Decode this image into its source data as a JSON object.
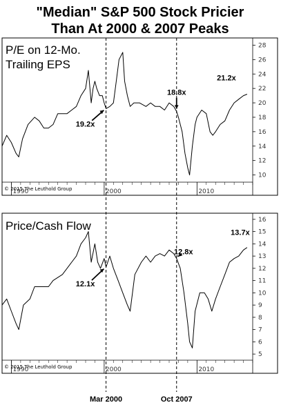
{
  "title_line1": "\"Median\" S&P 500 Stock Pricier",
  "title_line2": "Than At 2000 & 2007 Peaks",
  "event_labels": [
    "Mar 2000",
    "Oct 2007"
  ],
  "chart_data": [
    {
      "type": "line",
      "title_line1": "P/E on 12-Mo.",
      "title_line2": "Trailing EPS",
      "copyright": "© 2015 The Leuthold Group",
      "xlim": [
        1989.0,
        2016.0
      ],
      "ylim": [
        9,
        29
      ],
      "yticks": [
        10,
        12,
        14,
        16,
        18,
        20,
        22,
        24,
        26,
        28
      ],
      "xticks": [
        {
          "x": 1990,
          "label": "1990"
        },
        {
          "x": 2000,
          "label": "2000"
        },
        {
          "x": 2010,
          "label": "2010"
        }
      ],
      "vlines": [
        2000.2,
        2007.8
      ],
      "series": [
        {
          "x": [
            1989.0,
            1989.5,
            1990.0,
            1990.5,
            1990.8,
            1991.2,
            1991.8,
            1992.5,
            1993.0,
            1993.5,
            1994.0,
            1994.5,
            1995.0,
            1995.5,
            1996.0,
            1996.5,
            1997.0,
            1997.5,
            1998.0,
            1998.3,
            1998.6,
            1998.8,
            1999.0,
            1999.2,
            1999.5,
            1999.8,
            2000.0,
            2000.2,
            2000.6,
            2001.0,
            2001.3,
            2001.6,
            2002.0,
            2002.2,
            2002.5,
            2002.8,
            2003.2,
            2003.8,
            2004.5,
            2005.0,
            2005.5,
            2006.0,
            2006.5,
            2007.0,
            2007.5,
            2007.8,
            2008.0,
            2008.4,
            2008.7,
            2009.0,
            2009.2,
            2009.5,
            2009.8,
            2010.0,
            2010.5,
            2011.0,
            2011.4,
            2011.7,
            2012.0,
            2012.5,
            2013.0,
            2013.5,
            2014.0,
            2014.5,
            2015.0,
            2015.4
          ],
          "y": [
            14,
            15.5,
            14.5,
            13,
            12.5,
            15,
            17,
            18,
            17.5,
            16.5,
            16.5,
            17,
            18.5,
            18.5,
            18.5,
            19,
            19.5,
            21,
            22,
            24.5,
            20,
            22,
            23,
            22,
            21,
            21,
            20,
            19.2,
            19.5,
            20,
            23,
            26,
            27,
            23,
            21,
            19.5,
            20,
            20,
            19.5,
            20,
            19.5,
            19.5,
            19,
            20,
            19.5,
            18.8,
            18,
            16,
            13,
            11,
            10,
            14,
            17,
            18,
            19,
            18.5,
            16,
            15.5,
            16,
            17,
            17.5,
            19,
            20,
            20.5,
            21,
            21.2
          ]
        }
      ],
      "annotations": [
        {
          "label": "19.2x",
          "x": 2000.2,
          "y": 19.2
        },
        {
          "label": "18.8x",
          "x": 2007.8,
          "y": 18.8
        },
        {
          "label": "21.2x",
          "x": 2015.4,
          "y": 21.2
        }
      ]
    },
    {
      "type": "line",
      "title_line1": "Price/Cash Flow",
      "title_line2": "",
      "copyright": "© 2015 The Leuthold Group",
      "xlim": [
        1989.0,
        2016.0
      ],
      "ylim": [
        4.5,
        16.5
      ],
      "yticks": [
        5,
        6,
        7,
        8,
        9,
        10,
        11,
        12,
        13,
        14,
        15,
        16
      ],
      "xticks": [
        {
          "x": 1990,
          "label": "1990"
        },
        {
          "x": 2000,
          "label": "2000"
        },
        {
          "x": 2010,
          "label": "2010"
        }
      ],
      "vlines": [
        2000.2,
        2007.8
      ],
      "series": [
        {
          "x": [
            1989.0,
            1989.5,
            1990.0,
            1990.5,
            1990.8,
            1991.3,
            1992.0,
            1992.5,
            1993.0,
            1994.0,
            1994.5,
            1995.5,
            1996.0,
            1996.5,
            1997.0,
            1997.5,
            1998.0,
            1998.3,
            1998.6,
            1999.0,
            1999.3,
            1999.6,
            2000.0,
            2000.2,
            2000.6,
            2001.0,
            2001.5,
            2002.0,
            2002.5,
            2002.8,
            2003.3,
            2004.0,
            2004.5,
            2005.0,
            2005.5,
            2006.0,
            2006.5,
            2007.0,
            2007.5,
            2007.8,
            2008.2,
            2008.6,
            2009.0,
            2009.2,
            2009.5,
            2009.8,
            2010.3,
            2010.8,
            2011.2,
            2011.6,
            2012.0,
            2012.5,
            2013.0,
            2013.5,
            2014.0,
            2014.5,
            2015.0,
            2015.4
          ],
          "y": [
            9,
            9.5,
            8.5,
            7.5,
            7,
            9,
            9.5,
            10.5,
            10.5,
            10.5,
            11,
            11.5,
            12,
            12.5,
            13,
            14,
            14.5,
            15,
            12.5,
            14,
            12.5,
            12,
            12.8,
            12.1,
            13,
            12,
            11,
            10,
            9,
            8.5,
            11.5,
            12.5,
            13,
            12.5,
            13,
            13.2,
            13,
            13.5,
            13.2,
            12.8,
            12,
            10,
            7.5,
            6,
            5.5,
            8.5,
            10,
            10,
            9.5,
            8.5,
            9.5,
            10.5,
            11.5,
            12.5,
            12.8,
            13,
            13.5,
            13.7
          ]
        }
      ],
      "annotations": [
        {
          "label": "12.1x",
          "x": 2000.2,
          "y": 12.1
        },
        {
          "label": "12.8x",
          "x": 2007.8,
          "y": 12.8
        },
        {
          "label": "13.7x",
          "x": 2015.4,
          "y": 13.7
        }
      ]
    }
  ]
}
